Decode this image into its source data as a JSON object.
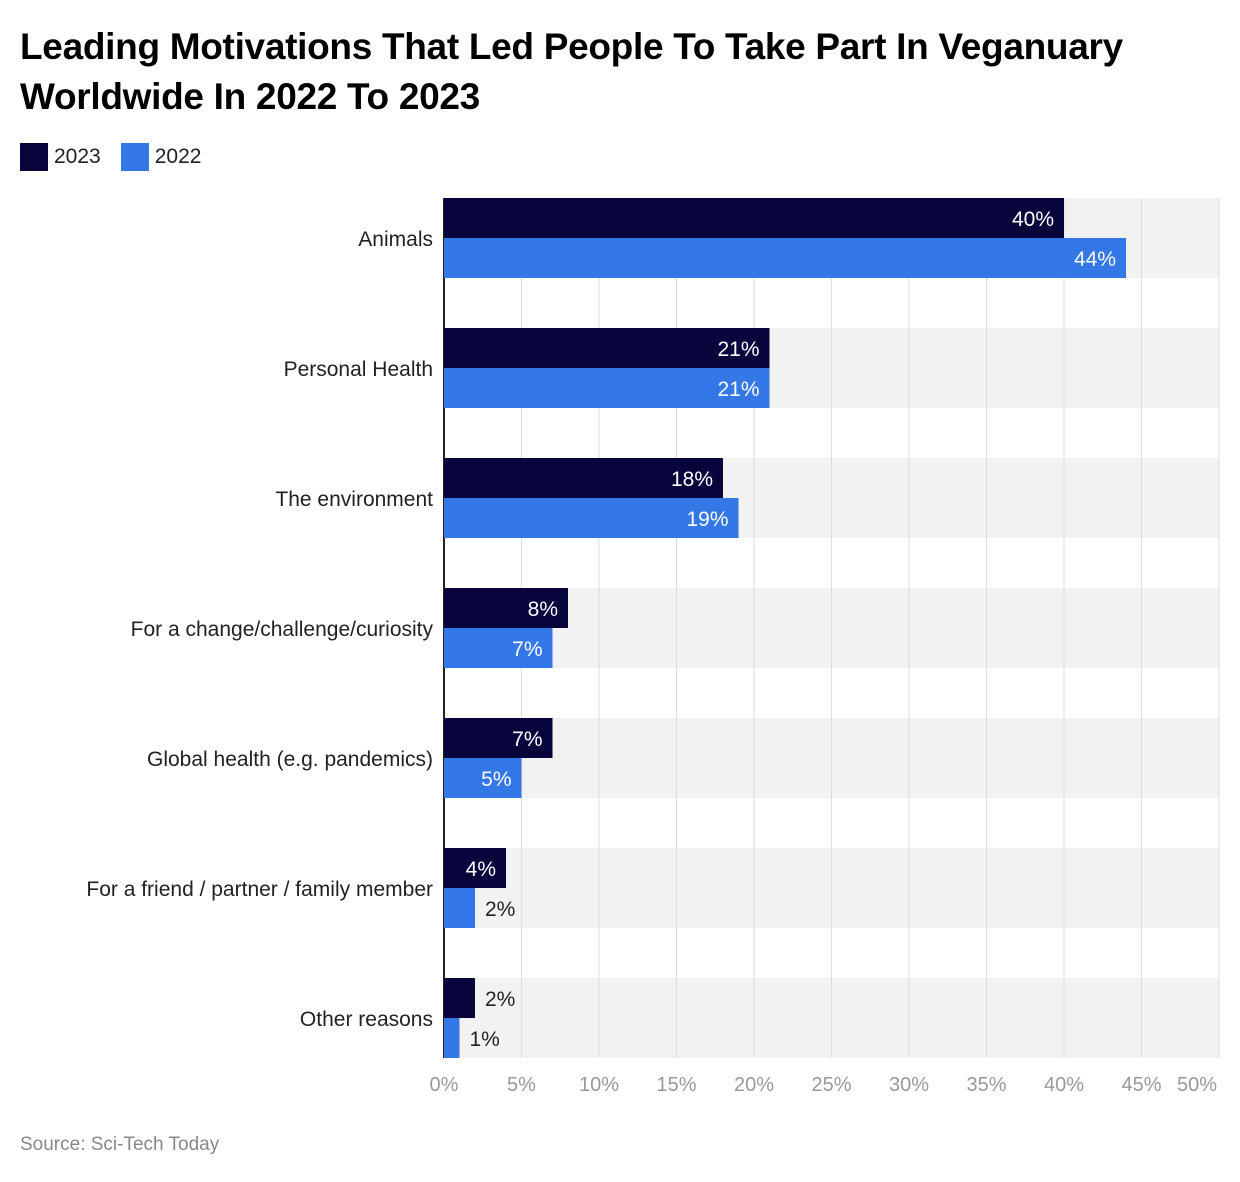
{
  "title": "Leading Motivations That Led People To Take Part In Veganuary Worldwide In 2022 To 2023",
  "source": "Source: Sci-Tech Today",
  "chart_data": {
    "type": "bar",
    "orientation": "horizontal",
    "title": "Leading Motivations That Led People To Take Part In Veganuary Worldwide In 2022 To 2023",
    "categories": [
      "Animals",
      "Personal Health",
      "The environment",
      "For a change/challenge/curiosity",
      "Global health (e.g. pandemics)",
      "For a friend / partner / family member",
      "Other reasons"
    ],
    "series": [
      {
        "name": "2023",
        "color": "#07033b",
        "values": [
          40,
          21,
          18,
          8,
          7,
          4,
          2
        ]
      },
      {
        "name": "2022",
        "color": "#3478e8",
        "values": [
          44,
          21,
          19,
          7,
          5,
          2,
          1
        ]
      }
    ],
    "xlim": [
      0,
      50
    ],
    "xticks": [
      "0%",
      "5%",
      "10%",
      "15%",
      "20%",
      "25%",
      "30%",
      "35%",
      "40%",
      "45%",
      "50%"
    ],
    "grid": true,
    "legend_position": "top-left"
  }
}
